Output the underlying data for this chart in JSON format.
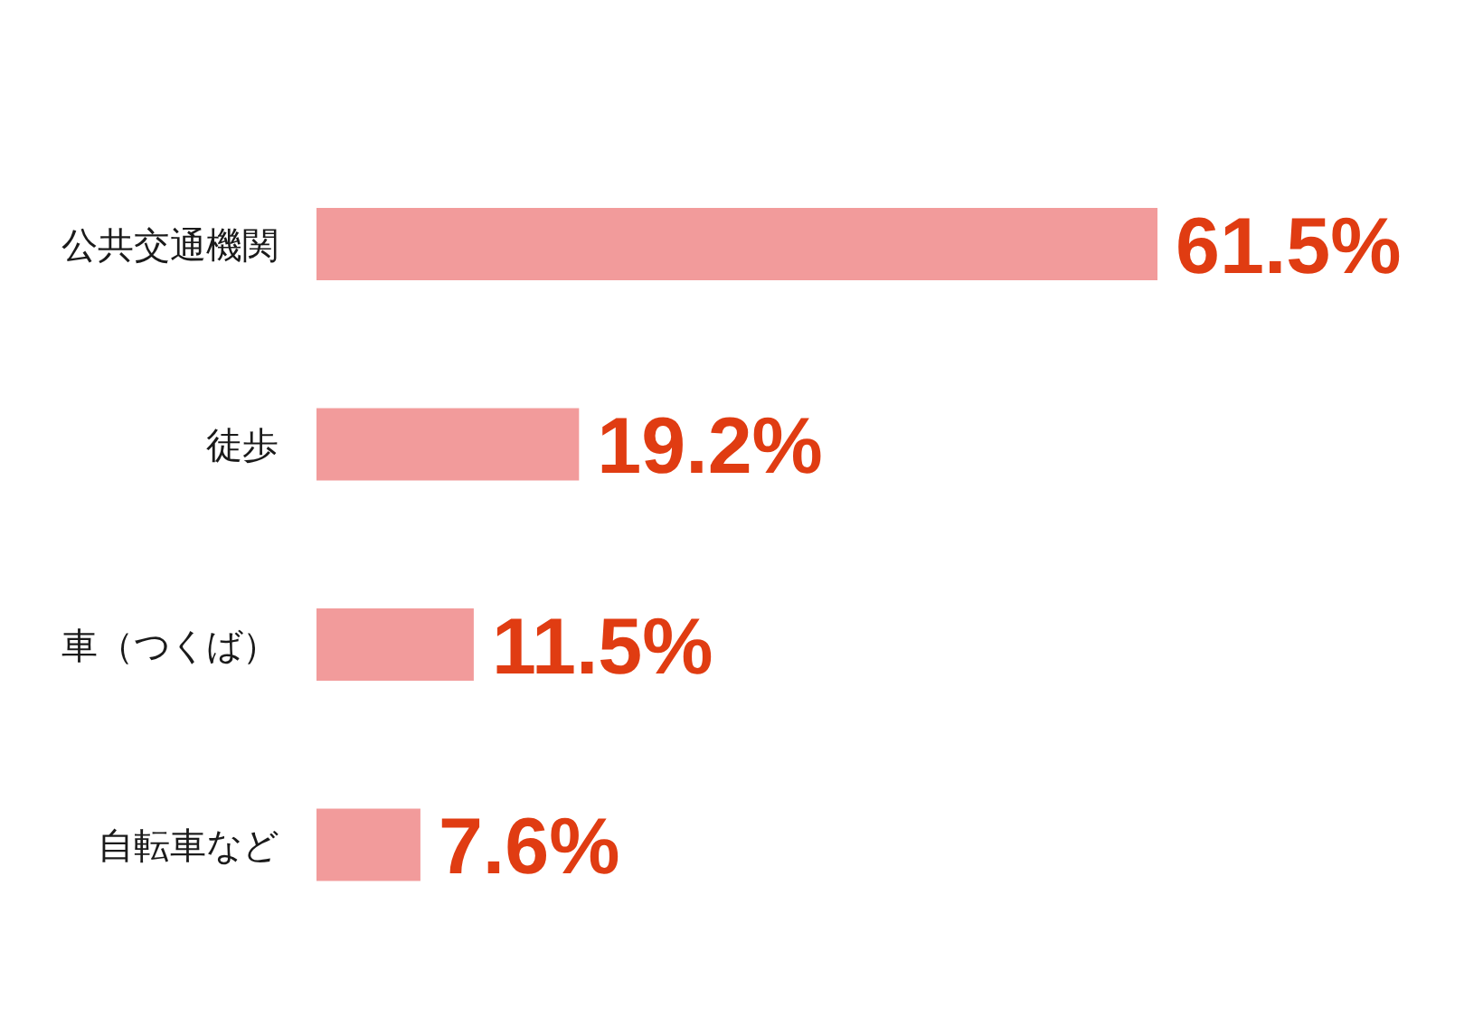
{
  "chart_data": {
    "type": "bar",
    "orientation": "horizontal",
    "categories": [
      "公共交通機関",
      "徒歩",
      "車（つくば）",
      "自転車など"
    ],
    "values": [
      61.5,
      19.2,
      11.5,
      7.6
    ],
    "color": "#f29b9b",
    "value_labels": [
      "61.5%",
      "19.2%",
      "11.5%",
      "7.6%"
    ]
  }
}
